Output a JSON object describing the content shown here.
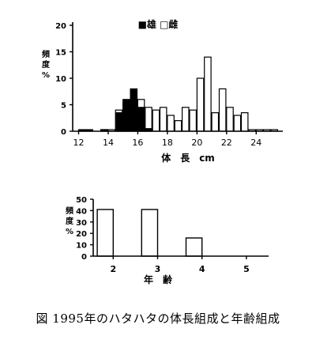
{
  "chart_data": [
    {
      "type": "bar",
      "title": "",
      "legend": {
        "position": "top-center",
        "entries": [
          {
            "symbol": "filled",
            "label": "雄"
          },
          {
            "symbol": "open",
            "label": "雌"
          }
        ]
      },
      "legend_text": "■雄 □雌",
      "xlabel": "体　長　cm",
      "ylabel": "頻度%",
      "ylabel_lines": [
        "頻",
        "度",
        "%"
      ],
      "xlim": [
        11.6,
        25.8
      ],
      "ylim": [
        0,
        20
      ],
      "xticks": [
        "12",
        "14",
        "16",
        "18",
        "20",
        "22",
        "24"
      ],
      "yticks": [
        "0",
        "5",
        "10",
        "15",
        "20"
      ],
      "bin_width": 0.5,
      "series": [
        {
          "name": "雄",
          "fill": "#000000",
          "x": [
            12.0,
            12.5,
            13.5,
            14.5,
            15.0,
            15.5,
            16.0,
            16.5
          ],
          "values": [
            0.3,
            0.3,
            0.3,
            3.5,
            6.0,
            8.0,
            4.5,
            0.5
          ]
        },
        {
          "name": "雌",
          "fill": "#ffffff",
          "x": [
            13.5,
            14.0,
            14.5,
            15.0,
            15.5,
            16.0,
            16.5,
            17.0,
            17.5,
            18.0,
            18.5,
            19.0,
            19.5,
            20.0,
            20.5,
            21.0,
            21.5,
            22.0,
            22.5,
            23.0,
            23.5,
            24.0,
            24.5,
            25.0
          ],
          "values": [
            0.3,
            0.3,
            4.0,
            5.5,
            4.5,
            6.0,
            4.5,
            4.0,
            4.5,
            3.0,
            2.0,
            4.5,
            4.0,
            10.0,
            14.0,
            3.5,
            8.0,
            4.5,
            3.0,
            3.5,
            0.3,
            0.3,
            0.3,
            0.3
          ]
        }
      ]
    },
    {
      "type": "bar",
      "title": "",
      "xlabel": "年　齢",
      "ylabel": "頻度%",
      "ylabel_lines": [
        "頻",
        "度",
        "%"
      ],
      "xlim": [
        1.55,
        5.5
      ],
      "ylim": [
        0,
        50
      ],
      "xticks": [
        "2",
        "3",
        "4",
        "5"
      ],
      "yticks": [
        "0",
        "10",
        "20",
        "30",
        "40",
        "50"
      ],
      "categories": [
        "2",
        "3",
        "4",
        "5"
      ],
      "values": [
        41,
        41,
        16,
        0
      ]
    }
  ],
  "caption": "図 1995年のハタハタの体長組成と年齢組成"
}
